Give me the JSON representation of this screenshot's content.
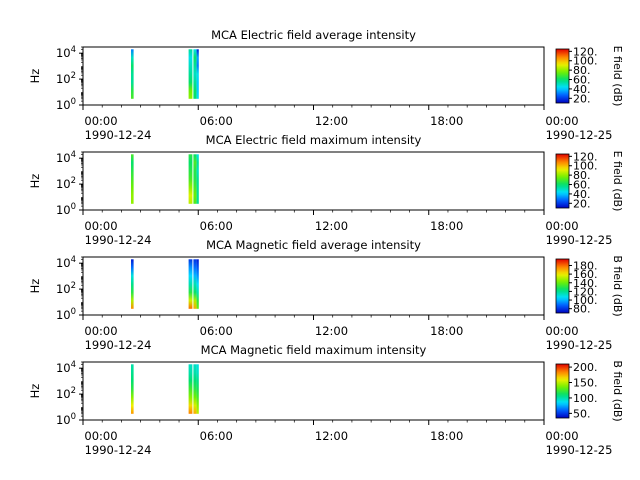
{
  "colors": {
    "colormap": [
      "#0000c0",
      "#0060ff",
      "#00e0ff",
      "#00e070",
      "#70f000",
      "#f0f000",
      "#ff8000",
      "#e00000"
    ]
  },
  "chart_data": [
    {
      "type": "heatmap",
      "title": "MCA  Electric field average intensity",
      "ylabel": "Hz",
      "yscale": "log",
      "ylim": [
        1,
        30000
      ],
      "y_ticks": [
        "10^0",
        "10^2",
        "10^4"
      ],
      "xlim": [
        "1990-12-24 00:00",
        "1990-12-25 00:00"
      ],
      "x_ticks": [
        "00:00",
        "06:00",
        "12:00",
        "18:00",
        "00:00"
      ],
      "x_dates": [
        "1990-12-24",
        "",
        "",
        "",
        "1990-12-25"
      ],
      "colorbar": {
        "label": "E field (dB)",
        "range": [
          10,
          125
        ],
        "ticks": [
          "20.",
          "40.",
          "60.",
          "80.",
          "100.",
          "120."
        ]
      },
      "bursts": [
        {
          "start": "02:30",
          "end": "02:38",
          "intensity_bottom_to_top": [
            70,
            65,
            55,
            55,
            60,
            50,
            30
          ]
        },
        {
          "start": "05:30",
          "end": "05:42",
          "intensity_bottom_to_top": [
            80,
            75,
            60,
            55,
            50,
            45,
            55
          ]
        },
        {
          "start": "05:45",
          "end": "05:55",
          "intensity_bottom_to_top": [
            60,
            60,
            55,
            50,
            55,
            60,
            45
          ]
        },
        {
          "start": "05:55",
          "end": "06:02",
          "intensity_bottom_to_top": [
            45,
            40,
            40,
            45,
            30,
            35,
            15
          ]
        }
      ]
    },
    {
      "type": "heatmap",
      "title": "MCA  Electric field maximum intensity",
      "ylabel": "Hz",
      "yscale": "log",
      "ylim": [
        1,
        30000
      ],
      "y_ticks": [
        "10^0",
        "10^2",
        "10^4"
      ],
      "xlim": [
        "1990-12-24 00:00",
        "1990-12-25 00:00"
      ],
      "x_ticks": [
        "00:00",
        "06:00",
        "12:00",
        "18:00",
        "00:00"
      ],
      "x_dates": [
        "1990-12-24",
        "",
        "",
        "",
        "1990-12-25"
      ],
      "colorbar": {
        "label": "E field (dB)",
        "range": [
          10,
          125
        ],
        "ticks": [
          "20.",
          "40.",
          "60.",
          "80.",
          "100.",
          "120."
        ]
      },
      "bursts": [
        {
          "start": "02:30",
          "end": "02:38",
          "intensity_bottom_to_top": [
            80,
            80,
            75,
            70,
            65,
            60,
            70
          ]
        },
        {
          "start": "05:30",
          "end": "05:42",
          "intensity_bottom_to_top": [
            85,
            90,
            80,
            70,
            65,
            60,
            65
          ]
        },
        {
          "start": "05:45",
          "end": "05:55",
          "intensity_bottom_to_top": [
            70,
            75,
            70,
            65,
            65,
            70,
            60
          ]
        },
        {
          "start": "05:55",
          "end": "06:02",
          "intensity_bottom_to_top": [
            55,
            55,
            55,
            55,
            50,
            55,
            45
          ]
        }
      ]
    },
    {
      "type": "heatmap",
      "title": "MCA  Magnetic field average intensity",
      "ylabel": "Hz",
      "yscale": "log",
      "ylim": [
        1,
        30000
      ],
      "y_ticks": [
        "10^0",
        "10^2",
        "10^4"
      ],
      "xlim": [
        "1990-12-24 00:00",
        "1990-12-25 00:00"
      ],
      "x_ticks": [
        "00:00",
        "06:00",
        "12:00",
        "18:00",
        "00:00"
      ],
      "x_dates": [
        "1990-12-24",
        "",
        "",
        "",
        "1990-12-25"
      ],
      "colorbar": {
        "label": "B field (dB)",
        "range": [
          70,
          195
        ],
        "ticks": [
          "80.",
          "100.",
          "120.",
          "140.",
          "160.",
          "180."
        ]
      },
      "bursts": [
        {
          "start": "02:30",
          "end": "02:38",
          "intensity_bottom_to_top": [
            175,
            150,
            130,
            120,
            110,
            90,
            75
          ]
        },
        {
          "start": "05:30",
          "end": "05:42",
          "intensity_bottom_to_top": [
            180,
            155,
            130,
            115,
            105,
            95,
            80
          ]
        },
        {
          "start": "05:45",
          "end": "05:55",
          "intensity_bottom_to_top": [
            170,
            150,
            125,
            115,
            100,
            90,
            80
          ]
        },
        {
          "start": "05:55",
          "end": "06:02",
          "intensity_bottom_to_top": [
            140,
            130,
            115,
            105,
            95,
            85,
            75
          ]
        }
      ]
    },
    {
      "type": "heatmap",
      "title": "MCA  Magnetic field maximum intensity",
      "ylabel": "Hz",
      "yscale": "log",
      "ylim": [
        1,
        30000
      ],
      "y_ticks": [
        "10^0",
        "10^2",
        "10^4"
      ],
      "xlim": [
        "1990-12-24 00:00",
        "1990-12-25 00:00"
      ],
      "x_ticks": [
        "00:00",
        "06:00",
        "12:00",
        "18:00",
        "00:00"
      ],
      "x_dates": [
        "1990-12-24",
        "",
        "",
        "",
        "1990-12-25"
      ],
      "colorbar": {
        "label": "B field (dB)",
        "range": [
          35,
          210
        ],
        "ticks": [
          "50.",
          "100.",
          "150.",
          "200."
        ]
      },
      "bursts": [
        {
          "start": "02:30",
          "end": "02:38",
          "intensity_bottom_to_top": [
            180,
            160,
            140,
            120,
            110,
            105,
            100
          ]
        },
        {
          "start": "05:30",
          "end": "05:42",
          "intensity_bottom_to_top": [
            185,
            165,
            140,
            125,
            110,
            100,
            95
          ]
        },
        {
          "start": "05:45",
          "end": "05:55",
          "intensity_bottom_to_top": [
            175,
            155,
            135,
            120,
            110,
            100,
            95
          ]
        },
        {
          "start": "05:55",
          "end": "06:02",
          "intensity_bottom_to_top": [
            150,
            140,
            125,
            115,
            105,
            95,
            90
          ]
        }
      ]
    }
  ]
}
